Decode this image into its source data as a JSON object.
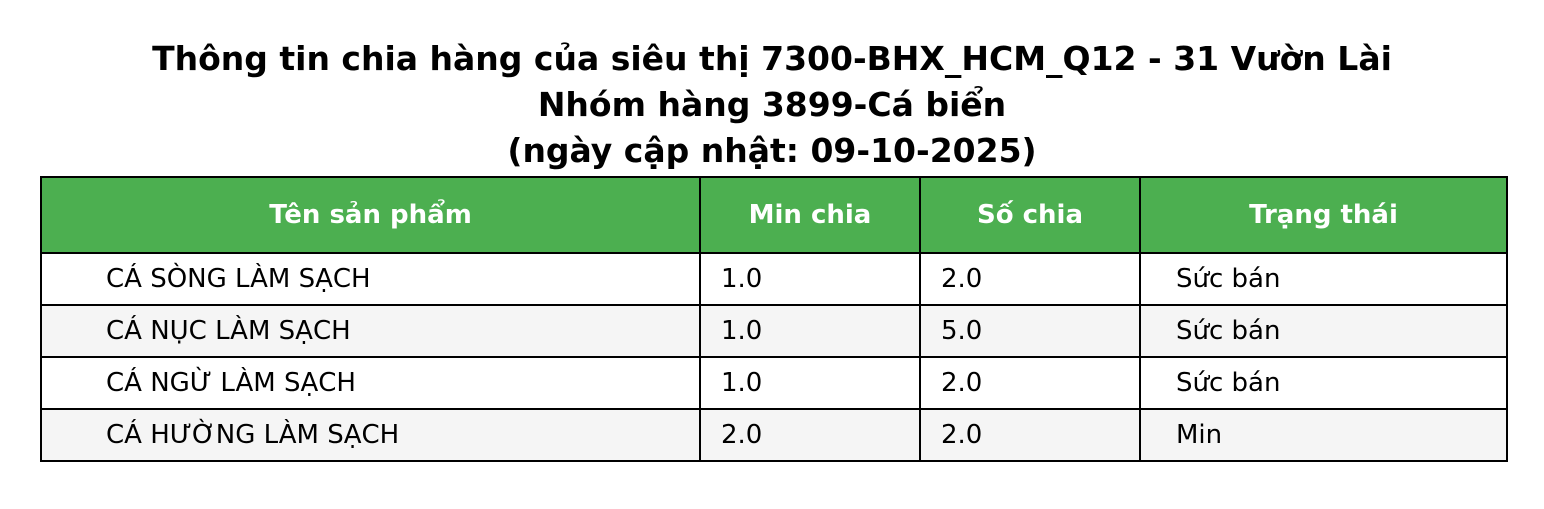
{
  "title": {
    "line1": "Thông tin chia hàng của siêu thị 7300-BHX_HCM_Q12 - 31 Vườn Lài",
    "line2": "Nhóm hàng 3899-Cá biển",
    "line3": "(ngày cập nhật: 09-10-2025)"
  },
  "table": {
    "headers": [
      "Tên sản phẩm",
      "Min chia",
      "Số chia",
      "Trạng thái"
    ],
    "rows": [
      [
        "CÁ SÒNG LÀM SẠCH",
        "1.0",
        "2.0",
        "Sức bán"
      ],
      [
        "CÁ NỤC LÀM SẠCH",
        "1.0",
        "5.0",
        "Sức bán"
      ],
      [
        "CÁ NGỪ LÀM SẠCH",
        "1.0",
        "2.0",
        "Sức bán"
      ],
      [
        "CÁ HƯỜNG LÀM SẠCH",
        "2.0",
        "2.0",
        "Min"
      ]
    ]
  },
  "colors": {
    "header_bg": "#4caf50",
    "header_text": "#ffffff",
    "row_alt_bg": "#f5f5f5",
    "border": "#000000"
  }
}
